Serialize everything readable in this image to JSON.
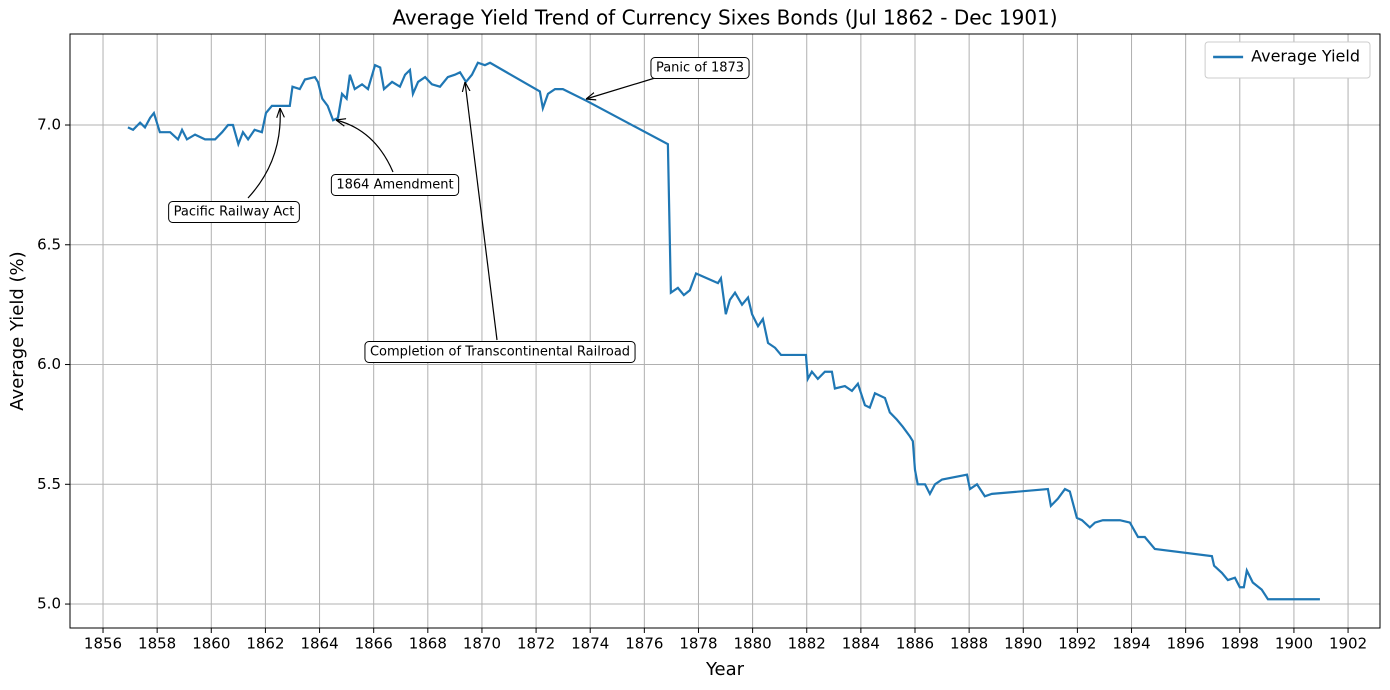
{
  "chart_data": {
    "type": "line",
    "title": "Average Yield Trend of Currency Sixes Bonds (Jul 1862 - Dec 1901)",
    "x_label": "Year",
    "y_label": "Average Yield (%)",
    "x": [
      1856.92,
      1857.11,
      1857.37,
      1857.55,
      1857.74,
      1857.88,
      1858.1,
      1858.48,
      1858.77,
      1858.92,
      1859.1,
      1859.4,
      1859.77,
      1860.14,
      1860.4,
      1860.62,
      1860.8,
      1861.0,
      1861.17,
      1861.36,
      1861.6,
      1861.87,
      1862.02,
      1862.24,
      1862.9,
      1863.0,
      1863.27,
      1863.46,
      1863.83,
      1863.94,
      1864.1,
      1864.3,
      1864.5,
      1864.68,
      1864.83,
      1865.0,
      1865.12,
      1865.3,
      1865.57,
      1865.79,
      1866.05,
      1866.24,
      1866.38,
      1866.68,
      1866.97,
      1867.16,
      1867.34,
      1867.45,
      1867.64,
      1867.9,
      1868.15,
      1868.45,
      1868.74,
      1869.0,
      1869.19,
      1869.41,
      1869.63,
      1869.85,
      1870.11,
      1870.3,
      1872.14,
      1872.25,
      1872.44,
      1872.7,
      1872.99,
      1873.88,
      1876.87,
      1876.98,
      1877.24,
      1877.46,
      1877.68,
      1877.91,
      1878.72,
      1878.83,
      1879.01,
      1879.16,
      1879.35,
      1879.61,
      1879.83,
      1879.98,
      1880.2,
      1880.38,
      1880.57,
      1880.83,
      1881.05,
      1881.97,
      1882.04,
      1882.19,
      1882.41,
      1882.67,
      1882.93,
      1883.04,
      1883.41,
      1883.67,
      1883.89,
      1884.15,
      1884.33,
      1884.52,
      1884.89,
      1885.07,
      1885.33,
      1885.55,
      1885.81,
      1885.92,
      1886.0,
      1886.1,
      1886.37,
      1886.55,
      1886.74,
      1887.0,
      1887.92,
      1888.03,
      1888.29,
      1888.58,
      1888.84,
      1890.91,
      1891.02,
      1891.28,
      1891.54,
      1891.72,
      1891.98,
      1892.17,
      1892.46,
      1892.65,
      1892.94,
      1893.57,
      1893.94,
      1894.24,
      1894.49,
      1894.86,
      1896.97,
      1897.05,
      1897.34,
      1897.56,
      1897.82,
      1898.0,
      1898.15,
      1898.26,
      1898.48,
      1898.81,
      1899.04,
      1900.96
    ],
    "series": [
      {
        "name": "Average Yield",
        "color": "#1f77b4",
        "values": [
          6.99,
          6.98,
          7.01,
          6.99,
          7.03,
          7.05,
          6.97,
          6.97,
          6.94,
          6.98,
          6.94,
          6.96,
          6.94,
          6.94,
          6.97,
          7.0,
          7.0,
          6.92,
          6.97,
          6.94,
          6.98,
          6.97,
          7.05,
          7.08,
          7.08,
          7.16,
          7.15,
          7.19,
          7.2,
          7.18,
          7.11,
          7.08,
          7.02,
          7.03,
          7.13,
          7.11,
          7.21,
          7.15,
          7.17,
          7.15,
          7.25,
          7.24,
          7.15,
          7.18,
          7.16,
          7.21,
          7.23,
          7.13,
          7.18,
          7.2,
          7.17,
          7.16,
          7.2,
          7.21,
          7.22,
          7.18,
          7.21,
          7.26,
          7.25,
          7.26,
          7.14,
          7.07,
          7.13,
          7.15,
          7.15,
          7.1,
          6.92,
          6.3,
          6.32,
          6.29,
          6.31,
          6.38,
          6.34,
          6.36,
          6.21,
          6.27,
          6.3,
          6.25,
          6.28,
          6.21,
          6.16,
          6.19,
          6.09,
          6.07,
          6.04,
          6.04,
          5.94,
          5.97,
          5.94,
          5.97,
          5.97,
          5.9,
          5.91,
          5.89,
          5.92,
          5.83,
          5.82,
          5.88,
          5.86,
          5.8,
          5.77,
          5.74,
          5.7,
          5.68,
          5.56,
          5.5,
          5.5,
          5.46,
          5.5,
          5.52,
          5.54,
          5.48,
          5.5,
          5.45,
          5.46,
          5.48,
          5.41,
          5.44,
          5.48,
          5.47,
          5.36,
          5.35,
          5.32,
          5.34,
          5.35,
          5.35,
          5.34,
          5.28,
          5.28,
          5.23,
          5.2,
          5.16,
          5.13,
          5.1,
          5.11,
          5.07,
          5.07,
          5.14,
          5.09,
          5.06,
          5.02,
          5.02
        ]
      }
    ],
    "annotations": [
      "Pacific Railway Act",
      "1864 Amendment",
      "Completion of Transcontinental Railroad",
      "Panic of 1873"
    ],
    "xlim": [
      1854.78,
      1903.18
    ],
    "ylim": [
      4.9,
      7.38
    ],
    "xticks": [
      1856,
      1858,
      1860,
      1862,
      1864,
      1866,
      1868,
      1870,
      1872,
      1874,
      1876,
      1878,
      1880,
      1882,
      1884,
      1886,
      1888,
      1890,
      1892,
      1894,
      1896,
      1898,
      1900,
      1902
    ],
    "yticks": [
      {
        "value": 5,
        "label": "5.0"
      },
      5.5,
      {
        "value": 6,
        "label": "6.0"
      },
      6.5,
      {
        "value": 7,
        "label": "7.0"
      }
    ],
    "grid": true,
    "legend": "upper right"
  }
}
